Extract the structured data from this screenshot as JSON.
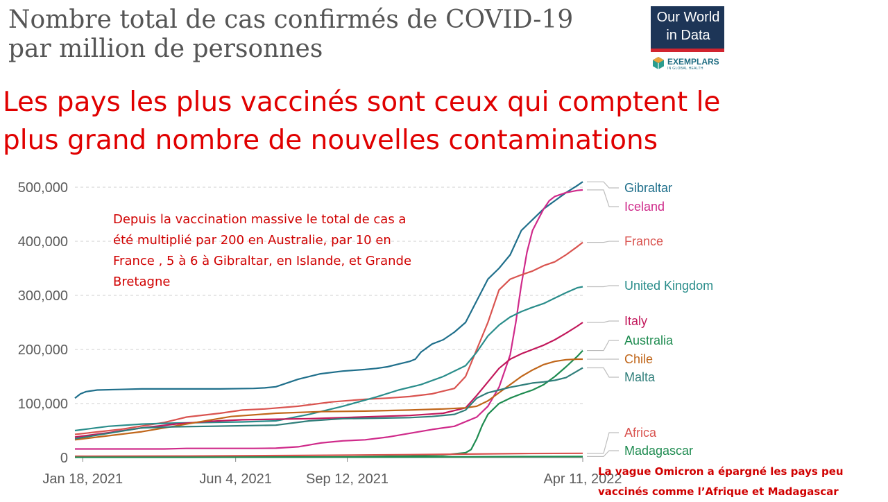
{
  "title": "Nombre total de cas confirmés de COVID-19 par million de personnes",
  "headline": "Les pays les plus vaccinés sont ceux qui comptent le plus grand nombre de nouvelles contaminations",
  "note": "Depuis la vaccination massive le total de cas a été multiplié par 200 en Australie, par 10 en France , 5 à 6 à  Gibraltar, en Islande, et Grande Bretagne",
  "omicron_note": "La vague Omicron a épargné les pays peu vaccinés comme l’Afrique et Madagascar",
  "logo": {
    "text": "Our World in Data",
    "exemplars": "EXEMPLARS",
    "exemplars_sub": "IN GLOBAL HEALTH"
  },
  "colors": {
    "accent": "#e00000",
    "logo_bg": "#1d3557",
    "logo_red": "#d1242f"
  },
  "chart_data": {
    "type": "line",
    "x_ticks": [
      "Jan 18, 2021",
      "Jun 4, 2021",
      "Sep 12, 2021",
      "Apr 11, 2022"
    ],
    "x_tick_days": [
      7,
      144,
      244,
      455
    ],
    "x_range_days": [
      0,
      455
    ],
    "ylim": [
      0,
      500000
    ],
    "y_ticks": [
      0,
      100000,
      200000,
      300000,
      400000,
      500000
    ],
    "y_tick_labels": [
      "0",
      "100,000",
      "200,000",
      "300,000",
      "400,000",
      "500,000"
    ],
    "grid": true,
    "series": [
      {
        "name": "Gibraltar",
        "color": "#1f6f8b",
        "x": [
          0,
          5,
          10,
          20,
          40,
          60,
          80,
          100,
          130,
          160,
          170,
          180,
          200,
          220,
          240,
          260,
          270,
          280,
          290,
          300,
          305,
          310,
          320,
          330,
          340,
          350,
          360,
          370,
          380,
          390,
          400,
          410,
          420,
          430,
          440,
          450,
          455
        ],
        "y": [
          110000,
          118000,
          122000,
          125000,
          126000,
          127000,
          127000,
          127000,
          127000,
          128000,
          129000,
          131000,
          145000,
          155000,
          160000,
          163000,
          165000,
          168000,
          173000,
          178000,
          182000,
          195000,
          210000,
          218000,
          232000,
          250000,
          290000,
          330000,
          350000,
          375000,
          420000,
          440000,
          460000,
          475000,
          490000,
          503000,
          510000
        ]
      },
      {
        "name": "Iceland",
        "color": "#cf2a8a",
        "x": [
          0,
          40,
          80,
          100,
          140,
          160,
          180,
          200,
          220,
          240,
          260,
          280,
          300,
          320,
          340,
          360,
          370,
          380,
          390,
          395,
          400,
          405,
          410,
          415,
          420,
          425,
          430,
          440,
          450,
          455
        ],
        "y": [
          16000,
          16000,
          16000,
          17000,
          17000,
          17000,
          17500,
          20000,
          27000,
          31000,
          33000,
          38000,
          45000,
          52000,
          58000,
          75000,
          95000,
          130000,
          190000,
          250000,
          320000,
          380000,
          420000,
          440000,
          460000,
          475000,
          483000,
          490000,
          494000,
          495000
        ]
      },
      {
        "name": "France",
        "color": "#d9534f",
        "x": [
          0,
          40,
          80,
          100,
          130,
          150,
          170,
          200,
          230,
          260,
          280,
          300,
          320,
          340,
          350,
          360,
          370,
          380,
          390,
          400,
          410,
          420,
          430,
          440,
          450,
          455
        ],
        "y": [
          43000,
          52000,
          65000,
          75000,
          82000,
          88000,
          90000,
          95000,
          103000,
          108000,
          110000,
          113000,
          118000,
          128000,
          150000,
          200000,
          250000,
          310000,
          330000,
          338000,
          345000,
          355000,
          362000,
          375000,
          390000,
          398000
        ]
      },
      {
        "name": "United Kingdom",
        "color": "#2a8d8b",
        "x": [
          0,
          30,
          60,
          90,
          120,
          150,
          180,
          210,
          240,
          270,
          290,
          310,
          330,
          350,
          360,
          370,
          380,
          390,
          400,
          410,
          420,
          430,
          440,
          450,
          455
        ],
        "y": [
          50000,
          58000,
          62000,
          64000,
          65000,
          66000,
          68000,
          80000,
          95000,
          112000,
          125000,
          135000,
          150000,
          170000,
          195000,
          225000,
          245000,
          260000,
          270000,
          278000,
          285000,
          295000,
          305000,
          314000,
          316000
        ]
      },
      {
        "name": "Italy",
        "color": "#c2185b",
        "x": [
          0,
          30,
          60,
          90,
          120,
          150,
          180,
          210,
          240,
          270,
          300,
          330,
          350,
          360,
          370,
          380,
          390,
          400,
          410,
          420,
          430,
          440,
          450,
          455
        ],
        "y": [
          38000,
          46000,
          55000,
          62000,
          67000,
          70000,
          71000,
          72000,
          74000,
          76000,
          78000,
          82000,
          92000,
          115000,
          140000,
          165000,
          182000,
          192000,
          200000,
          208000,
          218000,
          230000,
          243000,
          250000
        ]
      },
      {
        "name": "Australia",
        "color": "#1e8b50",
        "x": [
          0,
          100,
          200,
          250,
          300,
          330,
          350,
          355,
          360,
          365,
          370,
          380,
          390,
          400,
          410,
          420,
          430,
          440,
          450,
          455
        ],
        "y": [
          1000,
          1000,
          1200,
          1500,
          3000,
          5000,
          9000,
          15000,
          35000,
          60000,
          80000,
          100000,
          110000,
          118000,
          125000,
          135000,
          150000,
          168000,
          187000,
          198000
        ]
      },
      {
        "name": "Chile",
        "color": "#c0661a",
        "x": [
          0,
          20,
          60,
          100,
          140,
          180,
          220,
          260,
          300,
          330,
          350,
          360,
          370,
          380,
          390,
          400,
          410,
          420,
          430,
          440,
          450,
          455
        ],
        "y": [
          33000,
          38000,
          48000,
          62000,
          76000,
          82000,
          85000,
          86000,
          88000,
          90000,
          92000,
          95000,
          105000,
          120000,
          135000,
          150000,
          162000,
          172000,
          178000,
          181000,
          182000,
          182000
        ]
      },
      {
        "name": "Malta",
        "color": "#2f7e7a",
        "x": [
          0,
          30,
          60,
          90,
          120,
          150,
          180,
          210,
          240,
          270,
          300,
          320,
          340,
          350,
          360,
          370,
          380,
          390,
          400,
          410,
          420,
          430,
          440,
          450,
          455
        ],
        "y": [
          35000,
          45000,
          55000,
          57000,
          58000,
          59000,
          60000,
          68000,
          72000,
          73000,
          74000,
          76000,
          80000,
          88000,
          110000,
          120000,
          125000,
          130000,
          134000,
          138000,
          140000,
          143000,
          148000,
          160000,
          166000
        ]
      },
      {
        "name": "Africa",
        "color": "#d9534f",
        "x": [
          0,
          100,
          200,
          300,
          350,
          400,
          455
        ],
        "y": [
          2500,
          3000,
          4000,
          5500,
          6500,
          7500,
          8000
        ]
      },
      {
        "name": "Madagascar",
        "color": "#1e8b50",
        "x": [
          0,
          100,
          200,
          300,
          350,
          400,
          455
        ],
        "y": [
          600,
          700,
          1000,
          1300,
          1600,
          1900,
          2100
        ]
      }
    ]
  }
}
